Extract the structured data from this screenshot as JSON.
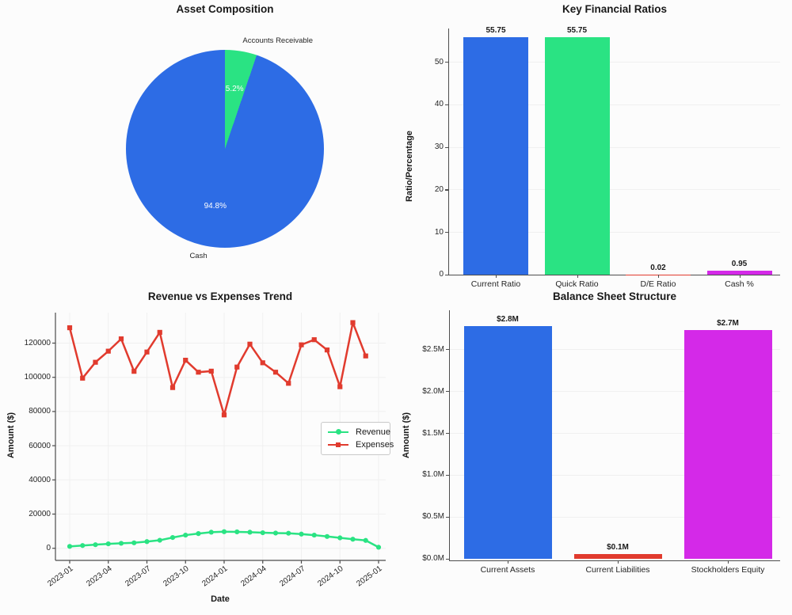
{
  "page": {
    "background": "#fcfcfc"
  },
  "colors": {
    "blue": "#2d6ce5",
    "green": "#2ae383",
    "red": "#e13b2e",
    "magenta": "#d429e8",
    "grid": "#f0f0f0",
    "axis": "#4d4d4d"
  },
  "chart_data": [
    {
      "type": "pie",
      "title": "Asset Composition",
      "slices": [
        {
          "label": "Accounts Receivable",
          "value": 5.2,
          "pct_label": "5.2%",
          "color": "#2ae383"
        },
        {
          "label": "Cash",
          "value": 94.8,
          "pct_label": "94.8%",
          "color": "#2d6ce5"
        }
      ],
      "start_angle": "top",
      "direction": "clockwise"
    },
    {
      "type": "bar",
      "title": "Key Financial Ratios",
      "ylabel": "Ratio/Percentage",
      "categories": [
        "Current Ratio",
        "Quick Ratio",
        "D/E Ratio",
        "Cash %"
      ],
      "values": [
        55.75,
        55.75,
        0.02,
        0.95
      ],
      "value_labels": [
        "55.75",
        "55.75",
        "0.02",
        "0.95"
      ],
      "colors": [
        "#2d6ce5",
        "#2ae383",
        "#e13b2e",
        "#d429e8"
      ],
      "yticks": [
        0,
        10,
        20,
        30,
        40,
        50
      ],
      "ylim": [
        0,
        58
      ],
      "grid": "horizontal"
    },
    {
      "type": "line",
      "title": "Revenue vs Expenses Trend",
      "xlabel": "Date",
      "ylabel": "Amount ($)",
      "x_monthly_start": "2023-01",
      "xtick_labels": [
        "2023-01",
        "2023-04",
        "2023-07",
        "2023-10",
        "2024-01",
        "2024-04",
        "2024-07",
        "2024-10",
        "2025-01"
      ],
      "yticks": [
        0,
        20000,
        40000,
        60000,
        80000,
        100000,
        120000
      ],
      "ytick_labels": [
        "0",
        "20000",
        "40000",
        "60000",
        "80000",
        "100000",
        "120000"
      ],
      "ylim": [
        -7000,
        137500
      ],
      "grid": "both",
      "legend_position": "center right",
      "series": [
        {
          "name": "Revenue",
          "color": "#2ae383",
          "marker": "circle",
          "values": [
            1100,
            1600,
            2100,
            2600,
            2900,
            3200,
            3900,
            4700,
            6300,
            7700,
            8600,
            9400,
            9700,
            9600,
            9400,
            9100,
            8900,
            8800,
            8300,
            7700,
            6900,
            6100,
            5300,
            4600,
            600
          ]
        },
        {
          "name": "Expenses",
          "color": "#e13b2e",
          "marker": "square",
          "values": [
            129000,
            99500,
            108800,
            115300,
            122500,
            103500,
            114800,
            126300,
            94000,
            110000,
            103000,
            103600,
            78000,
            106000,
            119400,
            108500,
            103000,
            96500,
            119000,
            122000,
            116000,
            94500,
            132000,
            112500
          ]
        }
      ]
    },
    {
      "type": "bar",
      "title": "Balance Sheet Structure",
      "ylabel": "Amount ($)",
      "categories": [
        "Current Assets",
        "Current Liabilities",
        "Stockholders Equity"
      ],
      "values": [
        2.78,
        0.05,
        2.73
      ],
      "values_unit": "millions_usd",
      "value_labels": [
        "$2.8M",
        "$0.1M",
        "$2.7M"
      ],
      "colors": [
        "#2d6ce5",
        "#e13b2e",
        "#d429e8"
      ],
      "yticks": [
        0,
        0.5,
        1.0,
        1.5,
        2.0,
        2.5
      ],
      "ytick_labels": [
        "$0.0M",
        "$0.5M",
        "$1.0M",
        "$1.5M",
        "$2.0M",
        "$2.5M"
      ],
      "ylim": [
        0,
        2.95
      ],
      "grid": "horizontal"
    }
  ]
}
